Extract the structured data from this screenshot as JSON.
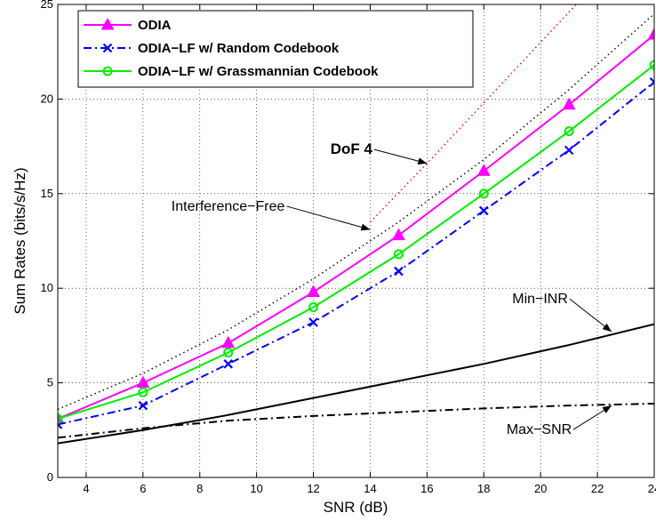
{
  "chart_data": {
    "type": "line",
    "xlabel": "SNR (dB)",
    "ylabel": "Sum Rates (bits/s/Hz)",
    "xlim": [
      3,
      24
    ],
    "ylim": [
      0,
      25
    ],
    "xticks": [
      4,
      6,
      8,
      10,
      12,
      14,
      16,
      18,
      20,
      22,
      24
    ],
    "yticks": [
      0,
      5,
      10,
      15,
      20,
      25
    ],
    "grid": true,
    "legend_position": "top-left",
    "series": [
      {
        "name": "ODIA",
        "color": "#ff00ff",
        "style": "solid",
        "marker": "triangle",
        "x": [
          3,
          6,
          9,
          12,
          15,
          18,
          21,
          24
        ],
        "y": [
          3.1,
          5.0,
          7.1,
          9.8,
          12.8,
          16.2,
          19.7,
          23.4
        ]
      },
      {
        "name": "ODIA−LF w/ Random Codebook",
        "color": "#0000ff",
        "style": "dashdot",
        "marker": "x",
        "x": [
          3,
          6,
          9,
          12,
          15,
          18,
          21,
          24
        ],
        "y": [
          2.8,
          3.8,
          6.0,
          8.2,
          10.9,
          14.1,
          17.3,
          20.9
        ]
      },
      {
        "name": "ODIA−LF w/ Grassmannian Codebook",
        "color": "#00ee00",
        "style": "solid",
        "marker": "circle",
        "x": [
          3,
          6,
          9,
          12,
          15,
          18,
          21,
          24
        ],
        "y": [
          3.1,
          4.5,
          6.6,
          9.0,
          11.8,
          15.0,
          18.3,
          21.8
        ]
      },
      {
        "color": "#000000",
        "style": "dotted",
        "marker": "none",
        "x": [
          3,
          6,
          9,
          12,
          15,
          18,
          21,
          24
        ],
        "y": [
          3.6,
          5.5,
          7.8,
          10.5,
          13.5,
          16.8,
          20.5,
          24.5
        ]
      },
      {
        "color": "#ff0000",
        "style": "dotted",
        "marker": "none",
        "x": [
          14,
          16,
          18,
          20,
          22,
          24
        ],
        "y": [
          13.5,
          16.6,
          19.8,
          23.0,
          26.2,
          29.4
        ]
      },
      {
        "color": "#000000",
        "style": "solid",
        "marker": "none",
        "x": [
          3,
          6,
          9,
          12,
          15,
          18,
          21,
          24
        ],
        "y": [
          1.8,
          2.5,
          3.3,
          4.2,
          5.1,
          6.0,
          7.0,
          8.1
        ]
      },
      {
        "color": "#000000",
        "style": "dashdot",
        "marker": "none",
        "x": [
          3,
          6,
          9,
          12,
          15,
          18,
          21,
          24
        ],
        "y": [
          2.1,
          2.6,
          3.0,
          3.25,
          3.45,
          3.65,
          3.8,
          3.9
        ]
      }
    ],
    "annotations": [
      {
        "text": "DoF 4",
        "bold": true,
        "x": 12.6,
        "y": 17.1,
        "arrow_to": [
          16.0,
          16.6
        ]
      },
      {
        "text": "Interference−Free",
        "x": 7.0,
        "y": 14.1,
        "arrow_to": [
          14.0,
          13.1
        ]
      },
      {
        "text": "Min−INR",
        "x": 19.0,
        "y": 9.2,
        "arrow_to": [
          22.5,
          7.7
        ]
      },
      {
        "text": "Max−SNR",
        "x": 18.8,
        "y": 2.3,
        "arrow_to": [
          22.5,
          3.8
        ]
      }
    ]
  }
}
